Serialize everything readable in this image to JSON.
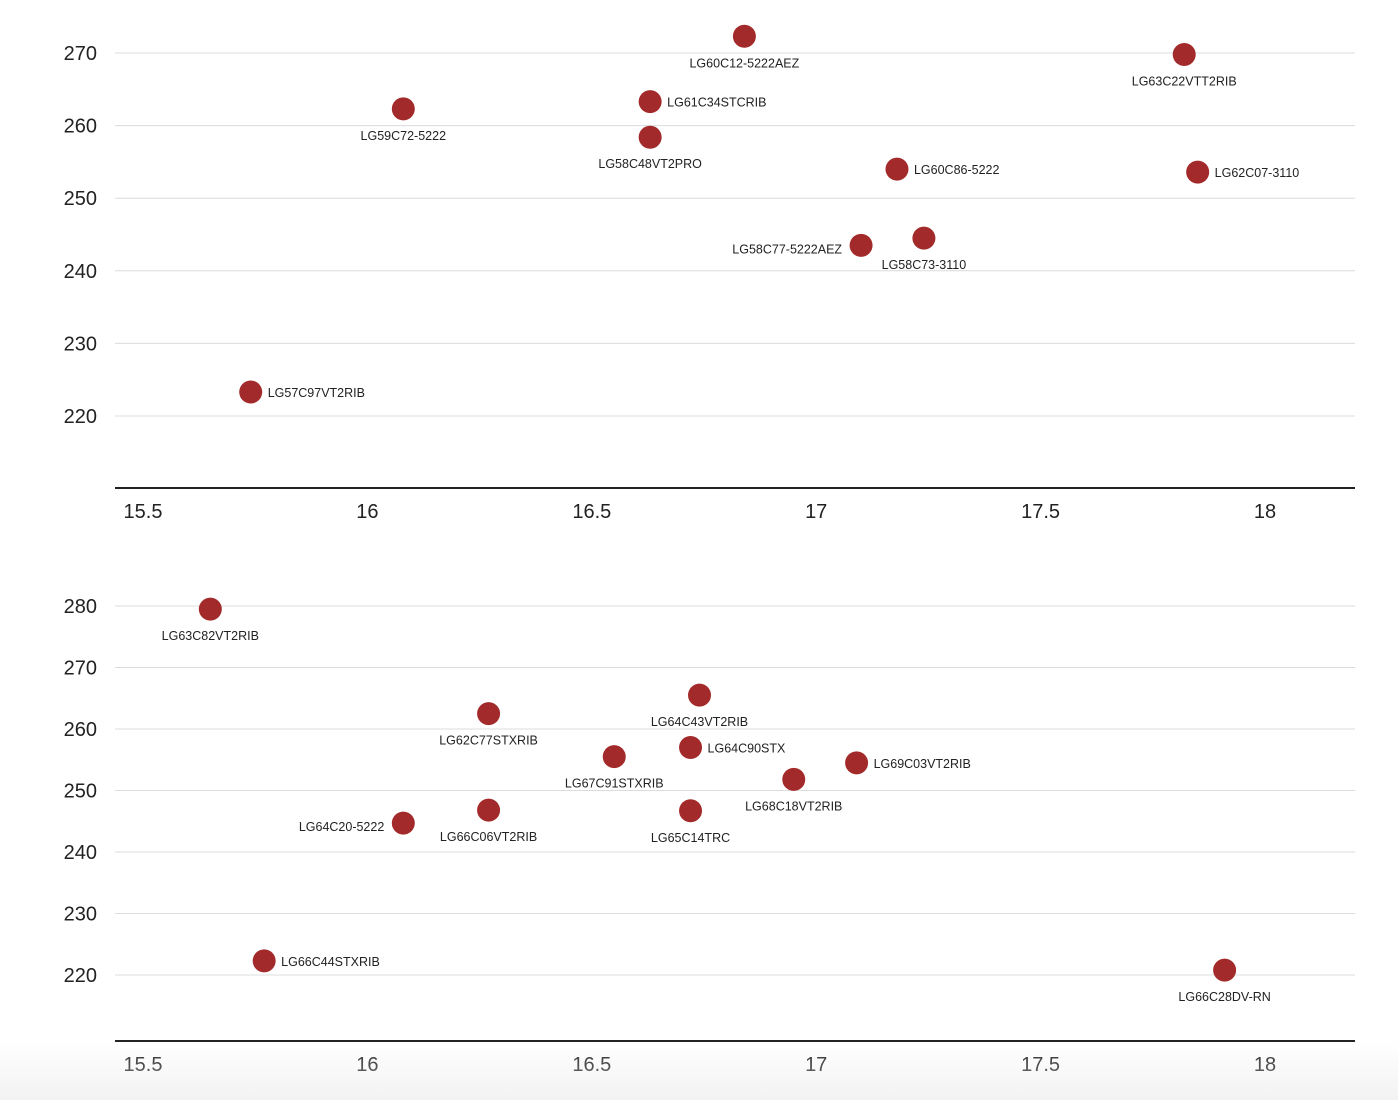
{
  "colors": {
    "point": "#a32a2a",
    "grid": "#dcdcdc",
    "axis": "#222222",
    "text": "#222222"
  },
  "chart_data": [
    {
      "type": "scatter",
      "title": "",
      "xlabel": "",
      "ylabel": "",
      "xlim": [
        15.45,
        18.2
      ],
      "ylim": [
        210,
        275
      ],
      "xticks": [
        "15.5",
        "16",
        "16.5",
        "17",
        "17.5",
        "18"
      ],
      "yticks": [
        "220",
        "230",
        "240",
        "250",
        "260",
        "270"
      ],
      "grid": true,
      "points": [
        {
          "label": "LG60C12-5222AEZ",
          "x": 16.84,
          "y": 272.3
        },
        {
          "label": "LG63C22VTT2RIB",
          "x": 17.82,
          "y": 269.8
        },
        {
          "label": "LG61C34STCRIB",
          "x": 16.63,
          "y": 263.3
        },
        {
          "label": "LG59C72-5222",
          "x": 16.08,
          "y": 262.3
        },
        {
          "label": "LG58C48VT2PRO",
          "x": 16.63,
          "y": 258.4
        },
        {
          "label": "LG60C86-5222",
          "x": 17.18,
          "y": 254.0
        },
        {
          "label": "LG62C07-3110",
          "x": 17.85,
          "y": 253.6
        },
        {
          "label": "LG58C73-3110",
          "x": 17.24,
          "y": 244.5
        },
        {
          "label": "LG58C77-5222AEZ",
          "x": 17.1,
          "y": 243.5
        },
        {
          "label": "LG57C97VT2RIB",
          "x": 15.74,
          "y": 223.3
        }
      ]
    },
    {
      "type": "scatter",
      "title": "",
      "xlabel": "",
      "ylabel": "",
      "xlim": [
        15.45,
        18.2
      ],
      "ylim": [
        210,
        285
      ],
      "xticks": [
        "15.5",
        "16",
        "16.5",
        "17",
        "17.5",
        "18"
      ],
      "yticks": [
        "220",
        "230",
        "240",
        "250",
        "260",
        "270",
        "280"
      ],
      "grid": true,
      "points": [
        {
          "label": "LG63C82VT2RIB",
          "x": 15.65,
          "y": 279.5
        },
        {
          "label": "LG64C43VT2RIB",
          "x": 16.74,
          "y": 265.5
        },
        {
          "label": "LG62C77STXRIB",
          "x": 16.27,
          "y": 262.5
        },
        {
          "label": "LG64C90STX",
          "x": 16.72,
          "y": 257.0
        },
        {
          "label": "LG67C91STXRIB",
          "x": 16.55,
          "y": 255.5
        },
        {
          "label": "LG69C03VT2RIB",
          "x": 17.09,
          "y": 254.5
        },
        {
          "label": "LG68C18VT2RIB",
          "x": 16.95,
          "y": 251.8
        },
        {
          "label": "LG66C06VT2RIB",
          "x": 16.27,
          "y": 246.8
        },
        {
          "label": "LG65C14TRC",
          "x": 16.72,
          "y": 246.7
        },
        {
          "label": "LG64C20-5222",
          "x": 16.08,
          "y": 244.7
        },
        {
          "label": "LG66C44STXRIB",
          "x": 15.77,
          "y": 222.3
        },
        {
          "label": "LG66C28DV-RN",
          "x": 17.91,
          "y": 220.8
        }
      ]
    }
  ]
}
